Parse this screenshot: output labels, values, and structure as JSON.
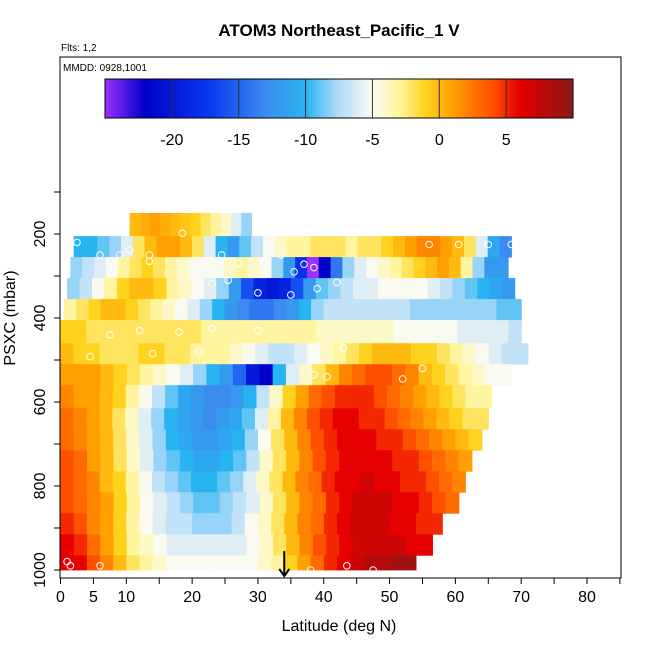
{
  "chart_data": {
    "type": "heatmap",
    "title": "ATOM3 Northeast_Pacific_1 V",
    "subtitle_flts": "Flts: 1,2",
    "subtitle_mmdd": "MMDD: 0928,1001",
    "xlabel": "Latitude (deg N)",
    "ylabel": "PSXC (mbar)",
    "xlim": [
      0,
      85
    ],
    "ylim": [
      1000,
      0
    ],
    "x_ticks": [
      0,
      5,
      10,
      20,
      30,
      40,
      50,
      60,
      70,
      80
    ],
    "y_ticks": [
      200,
      400,
      600,
      800,
      1000
    ],
    "colorbar": {
      "range": [
        -25,
        10
      ],
      "ticks": [
        -20,
        -15,
        -10,
        -5,
        0,
        5
      ],
      "stops": [
        {
          "v": -25,
          "c": "#9b30ff"
        },
        {
          "v": -22,
          "c": "#0000c8"
        },
        {
          "v": -17,
          "c": "#0a3cf0"
        },
        {
          "v": -13,
          "c": "#3c8cf0"
        },
        {
          "v": -10,
          "c": "#28b4f0"
        },
        {
          "v": -7.5,
          "c": "#b4dcfa"
        },
        {
          "v": -5,
          "c": "#fafaf0"
        },
        {
          "v": -3,
          "c": "#fff5a0"
        },
        {
          "v": -1,
          "c": "#ffd21e"
        },
        {
          "v": 1,
          "c": "#ffa000"
        },
        {
          "v": 4,
          "c": "#ff5000"
        },
        {
          "v": 6,
          "c": "#e60000"
        },
        {
          "v": 8,
          "c": "#b40a0a"
        },
        {
          "v": 10,
          "c": "#8b1a1a"
        }
      ]
    },
    "bands": [
      {
        "p1": 150,
        "p2": 205,
        "lat_start": 10.5,
        "lat_end": 29,
        "values": [
          0,
          0.5,
          1,
          0.5,
          0,
          -0.5,
          -1,
          -2,
          -3,
          -4,
          -6,
          -8
        ]
      },
      {
        "p1": 205,
        "p2": 255,
        "lat_start": 2,
        "lat_end": 68.5,
        "values": [
          -10,
          -10,
          -9,
          -8,
          -6,
          -2,
          0,
          1,
          1,
          0,
          -2,
          -6,
          -10,
          -12,
          -9,
          -7,
          -5,
          -4,
          -3,
          -3,
          -2,
          -2,
          -2,
          -3,
          -2,
          -2,
          -1,
          0,
          1,
          2,
          2,
          1,
          0,
          -2,
          -6,
          -11,
          -13
        ]
      },
      {
        "p1": 255,
        "p2": 305,
        "lat_start": 1.5,
        "lat_end": 68,
        "values": [
          -8,
          -7,
          -6,
          -5,
          -3,
          -2,
          -1,
          -2,
          -3,
          -4,
          -5,
          -5,
          -5,
          -4,
          -3,
          -4,
          -5,
          -8,
          -12,
          -18,
          -25,
          -22,
          -14,
          -8,
          -6,
          -5,
          -4,
          -3,
          -2,
          -1,
          0,
          1,
          0,
          -3,
          -8,
          -12,
          -12
        ]
      },
      {
        "p1": 305,
        "p2": 355,
        "lat_start": 1,
        "lat_end": 69,
        "values": [
          -8,
          -7,
          -5,
          -3,
          -1,
          0,
          0,
          -1,
          -3,
          -4,
          -5,
          -6,
          -8,
          -12,
          -16,
          -19,
          -20,
          -19,
          -16,
          -12,
          -9,
          -8,
          -7,
          -6,
          -6,
          -5,
          -5,
          -5,
          -5,
          -6,
          -7,
          -8,
          -9,
          -10,
          -11,
          -12
        ]
      },
      {
        "p1": 355,
        "p2": 405,
        "lat_start": 0.5,
        "lat_end": 70,
        "values": [
          -3,
          -2,
          -1,
          0,
          0,
          -1,
          -2,
          -3,
          -4,
          -5,
          -6,
          -8,
          -10,
          -12,
          -13,
          -14,
          -14,
          -13,
          -12,
          -10,
          -8,
          -7,
          -7,
          -7,
          -7,
          -7,
          -7,
          -7,
          -8,
          -8,
          -8,
          -8,
          -8,
          -8,
          -8,
          -9,
          -9
        ]
      },
      {
        "p1": 405,
        "p2": 460,
        "lat_start": 0,
        "lat_end": 70,
        "values": [
          -1,
          -1,
          -2,
          -2,
          -2,
          -2,
          -2,
          -2,
          -2,
          -2,
          -2,
          -3,
          -3,
          -3,
          -3,
          -3,
          -3,
          -3,
          -3,
          -3,
          -4,
          -4,
          -4,
          -4,
          -4,
          -4,
          -5,
          -5,
          -5,
          -5,
          -5,
          -6,
          -6,
          -6,
          -6,
          -7
        ]
      },
      {
        "p1": 460,
        "p2": 510,
        "lat_start": 0,
        "lat_end": 71,
        "values": [
          0,
          -1,
          -1,
          -2,
          -2,
          -2,
          -1,
          -1,
          -2,
          -2,
          -3,
          -3,
          -3,
          -4,
          -5,
          -6,
          -7,
          -7,
          -6,
          -5,
          -4,
          -3,
          -2,
          -1,
          0,
          0,
          0,
          -1,
          -1,
          -2,
          -3,
          -4,
          -5,
          -6,
          -7,
          -7
        ]
      },
      {
        "p1": 510,
        "p2": 560,
        "lat_start": 0,
        "lat_end": 68.5,
        "values": [
          1,
          1,
          1,
          0,
          -1,
          -2,
          -3,
          -4,
          -5,
          -6,
          -8,
          -10,
          -12,
          -15,
          -20,
          -22,
          -10,
          -6,
          -4,
          -2,
          0,
          2,
          3,
          4,
          4,
          3,
          2,
          0,
          -1,
          -2,
          -3,
          -4,
          -5,
          -5
        ]
      },
      {
        "p1": 560,
        "p2": 615,
        "lat_start": 0,
        "lat_end": 65.5,
        "values": [
          2,
          1,
          1,
          0,
          -1,
          -3,
          -5,
          -7,
          -9,
          -11,
          -12,
          -13,
          -13,
          -12,
          -10,
          -7,
          -4,
          -1,
          1,
          3,
          4,
          5,
          5,
          5,
          4,
          3,
          2,
          1,
          0,
          -1,
          -2,
          -3,
          -3
        ]
      },
      {
        "p1": 615,
        "p2": 665,
        "lat_start": 0,
        "lat_end": 65,
        "values": [
          3,
          2,
          1,
          0,
          -2,
          -4,
          -6,
          -8,
          -10,
          -11,
          -12,
          -13,
          -12,
          -11,
          -9,
          -6,
          -3,
          0,
          2,
          4,
          5,
          6,
          6,
          5,
          5,
          4,
          3,
          2,
          1,
          0,
          -1,
          -2,
          -2
        ]
      },
      {
        "p1": 665,
        "p2": 715,
        "lat_start": 0,
        "lat_end": 64,
        "values": [
          3,
          2,
          1,
          0,
          -2,
          -4,
          -6,
          -8,
          -10,
          -11,
          -12,
          -12,
          -11,
          -10,
          -8,
          -5,
          -2,
          0,
          2,
          4,
          5,
          6,
          6,
          6,
          5,
          5,
          4,
          3,
          2,
          1,
          0,
          -1
        ]
      },
      {
        "p1": 715,
        "p2": 765,
        "lat_start": 0,
        "lat_end": 62.5,
        "values": [
          4,
          3,
          1,
          0,
          -2,
          -4,
          -6,
          -8,
          -9,
          -10,
          -11,
          -11,
          -10,
          -9,
          -7,
          -4,
          -2,
          0,
          2,
          4,
          5,
          6,
          6,
          6,
          6,
          5,
          5,
          4,
          3,
          2,
          1
        ]
      },
      {
        "p1": 765,
        "p2": 815,
        "lat_start": 0,
        "lat_end": 61.5,
        "values": [
          4,
          3,
          2,
          0,
          -1,
          -3,
          -5,
          -7,
          -8,
          -9,
          -10,
          -10,
          -9,
          -8,
          -6,
          -4,
          -2,
          0,
          2,
          3,
          5,
          6,
          6,
          7,
          6,
          6,
          5,
          5,
          4,
          3,
          2
        ]
      },
      {
        "p1": 815,
        "p2": 865,
        "lat_start": 0,
        "lat_end": 60.5,
        "values": [
          4,
          3,
          2,
          1,
          -1,
          -3,
          -5,
          -6,
          -7,
          -8,
          -9,
          -9,
          -8,
          -7,
          -6,
          -4,
          -2,
          0,
          2,
          3,
          5,
          6,
          7,
          7,
          7,
          6,
          6,
          5,
          4,
          3
        ]
      },
      {
        "p1": 865,
        "p2": 915,
        "lat_start": 0,
        "lat_end": 58,
        "values": [
          5,
          4,
          2,
          1,
          -1,
          -3,
          -5,
          -6,
          -7,
          -7,
          -8,
          -8,
          -8,
          -7,
          -5,
          -4,
          -2,
          0,
          2,
          3,
          5,
          6,
          7,
          7,
          7,
          6,
          6,
          5,
          5
        ]
      },
      {
        "p1": 915,
        "p2": 965,
        "lat_start": 0,
        "lat_end": 56.5,
        "values": [
          6,
          5,
          3,
          1,
          -1,
          -3,
          -4,
          -5,
          -6,
          -6,
          -6,
          -6,
          -6,
          -6,
          -5,
          -4,
          -2,
          0,
          2,
          4,
          5,
          6,
          7,
          7,
          7,
          7,
          6,
          6
        ]
      },
      {
        "p1": 965,
        "p2": 1000,
        "lat_start": 0,
        "lat_end": 54,
        "values": [
          6,
          6,
          4,
          2,
          0,
          -2,
          -3,
          -4,
          -5,
          -5,
          -5,
          -5,
          -5,
          -5,
          -5,
          -4,
          -3,
          -1,
          1,
          3,
          5,
          6,
          7,
          8,
          8,
          9,
          9
        ]
      }
    ],
    "circles": [
      [
        2.5,
        220
      ],
      [
        6,
        250
      ],
      [
        9,
        250
      ],
      [
        10.5,
        238
      ],
      [
        13.5,
        250
      ],
      [
        18.5,
        198
      ],
      [
        24.5,
        250
      ],
      [
        33.5,
        250
      ],
      [
        13.5,
        265
      ],
      [
        27,
        270
      ],
      [
        31,
        265
      ],
      [
        35.5,
        290
      ],
      [
        37,
        272
      ],
      [
        38.5,
        280
      ],
      [
        23,
        318
      ],
      [
        25.5,
        310
      ],
      [
        30,
        340
      ],
      [
        35,
        345
      ],
      [
        39,
        330
      ],
      [
        42,
        315
      ],
      [
        7.5,
        440
      ],
      [
        12,
        430
      ],
      [
        18,
        433
      ],
      [
        23,
        425
      ],
      [
        30,
        430
      ],
      [
        4.5,
        492
      ],
      [
        14,
        485
      ],
      [
        21,
        480
      ],
      [
        39,
        488
      ],
      [
        43,
        473
      ],
      [
        38.5,
        535
      ],
      [
        40.5,
        540
      ],
      [
        52,
        545
      ],
      [
        55,
        520
      ],
      [
        1,
        980
      ],
      [
        1.5,
        990
      ],
      [
        6,
        990
      ],
      [
        22.5,
        990
      ],
      [
        43.5,
        990
      ],
      [
        47.5,
        1000
      ],
      [
        38,
        1000
      ],
      [
        65,
        225
      ],
      [
        68.5,
        225
      ],
      [
        60.5,
        225
      ],
      [
        56,
        225
      ]
    ],
    "arrow": {
      "lat": 34,
      "p_start": 955,
      "p_end": 1000
    }
  }
}
